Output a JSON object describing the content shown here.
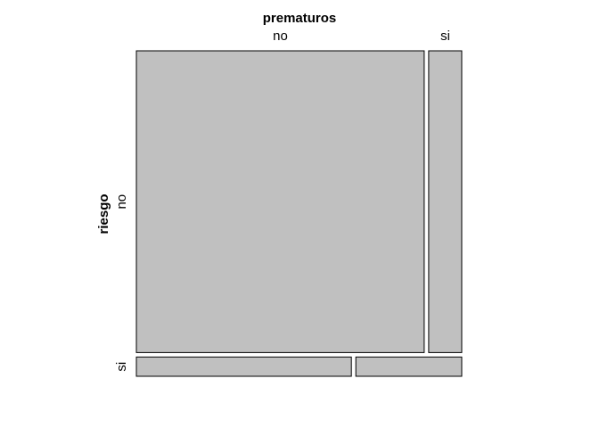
{
  "chart_data": {
    "type": "mosaic",
    "top_variable": "prematuros",
    "left_variable": "riesgo",
    "top_levels": [
      "no",
      "si"
    ],
    "left_levels": [
      "no",
      "si"
    ],
    "cell_color": "#c0c0c0",
    "cells": [
      {
        "riesgo": "no",
        "prematuros": "no",
        "proportion": 0.897
      },
      {
        "riesgo": "no",
        "prematuros": "si",
        "proportion": 0.103
      },
      {
        "riesgo": "si",
        "prematuros": "no",
        "proportion": 0.67
      },
      {
        "riesgo": "si",
        "prematuros": "si",
        "proportion": 0.33
      }
    ],
    "row_proportions": {
      "no": 0.94,
      "si": 0.06
    }
  }
}
